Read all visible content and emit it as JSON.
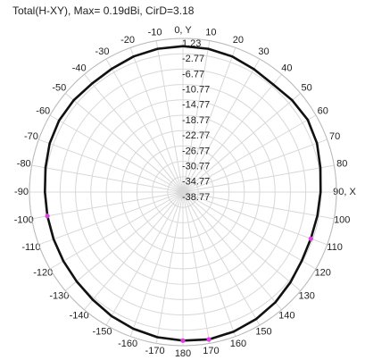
{
  "chart_data": {
    "type": "polar",
    "title": "Total(H-XY), Max= 0.19dBi, CirD=3.18",
    "rlim": [
      -38.77,
      1.23
    ],
    "rticks": [
      1.23,
      -2.77,
      -6.77,
      -10.77,
      -14.77,
      -18.77,
      -22.77,
      -26.77,
      -30.77,
      -34.77,
      -38.77
    ],
    "theta_ticks": [
      {
        "value": 0,
        "label": "0, Y"
      },
      10,
      20,
      30,
      40,
      50,
      60,
      70,
      80,
      {
        "value": 90,
        "label": "90, X"
      },
      100,
      110,
      120,
      130,
      140,
      150,
      160,
      170,
      180,
      -170,
      -160,
      -150,
      -140,
      -130,
      -120,
      -110,
      -100,
      -90,
      -80,
      -70,
      -60,
      -50,
      -40,
      -30,
      -20,
      -10
    ],
    "grid": true,
    "series": [
      {
        "color": "#111111",
        "x": [
          -170,
          -160,
          -150,
          -140,
          -130,
          -120,
          -110,
          -100,
          -90,
          -80,
          -70,
          -60,
          -50,
          -40,
          -30,
          -20,
          -10,
          0,
          10,
          20,
          30,
          40,
          50,
          60,
          70,
          80,
          90,
          100,
          110,
          120,
          130,
          140,
          150,
          160,
          170,
          180
        ],
        "values": [
          -0.4,
          -0.9,
          -1.5,
          -2.2,
          -2.6,
          -2.8,
          -2.9,
          -2.9,
          -2.8,
          -2.4,
          -1.8,
          -1.5,
          -1.6,
          -1.9,
          -1.7,
          -1.2,
          -0.9,
          -0.8,
          -0.9,
          -1.2,
          -1.8,
          -2.2,
          -1.6,
          -1.2,
          -1.6,
          -2.4,
          -2.9,
          -3.2,
          -3.3,
          -3.0,
          -2.2,
          -1.3,
          -0.6,
          -0.1,
          0.19,
          -0.1
        ]
      }
    ],
    "marker_angles": [
      -100,
      110,
      170,
      180
    ],
    "marker_color": "#e040e0"
  }
}
